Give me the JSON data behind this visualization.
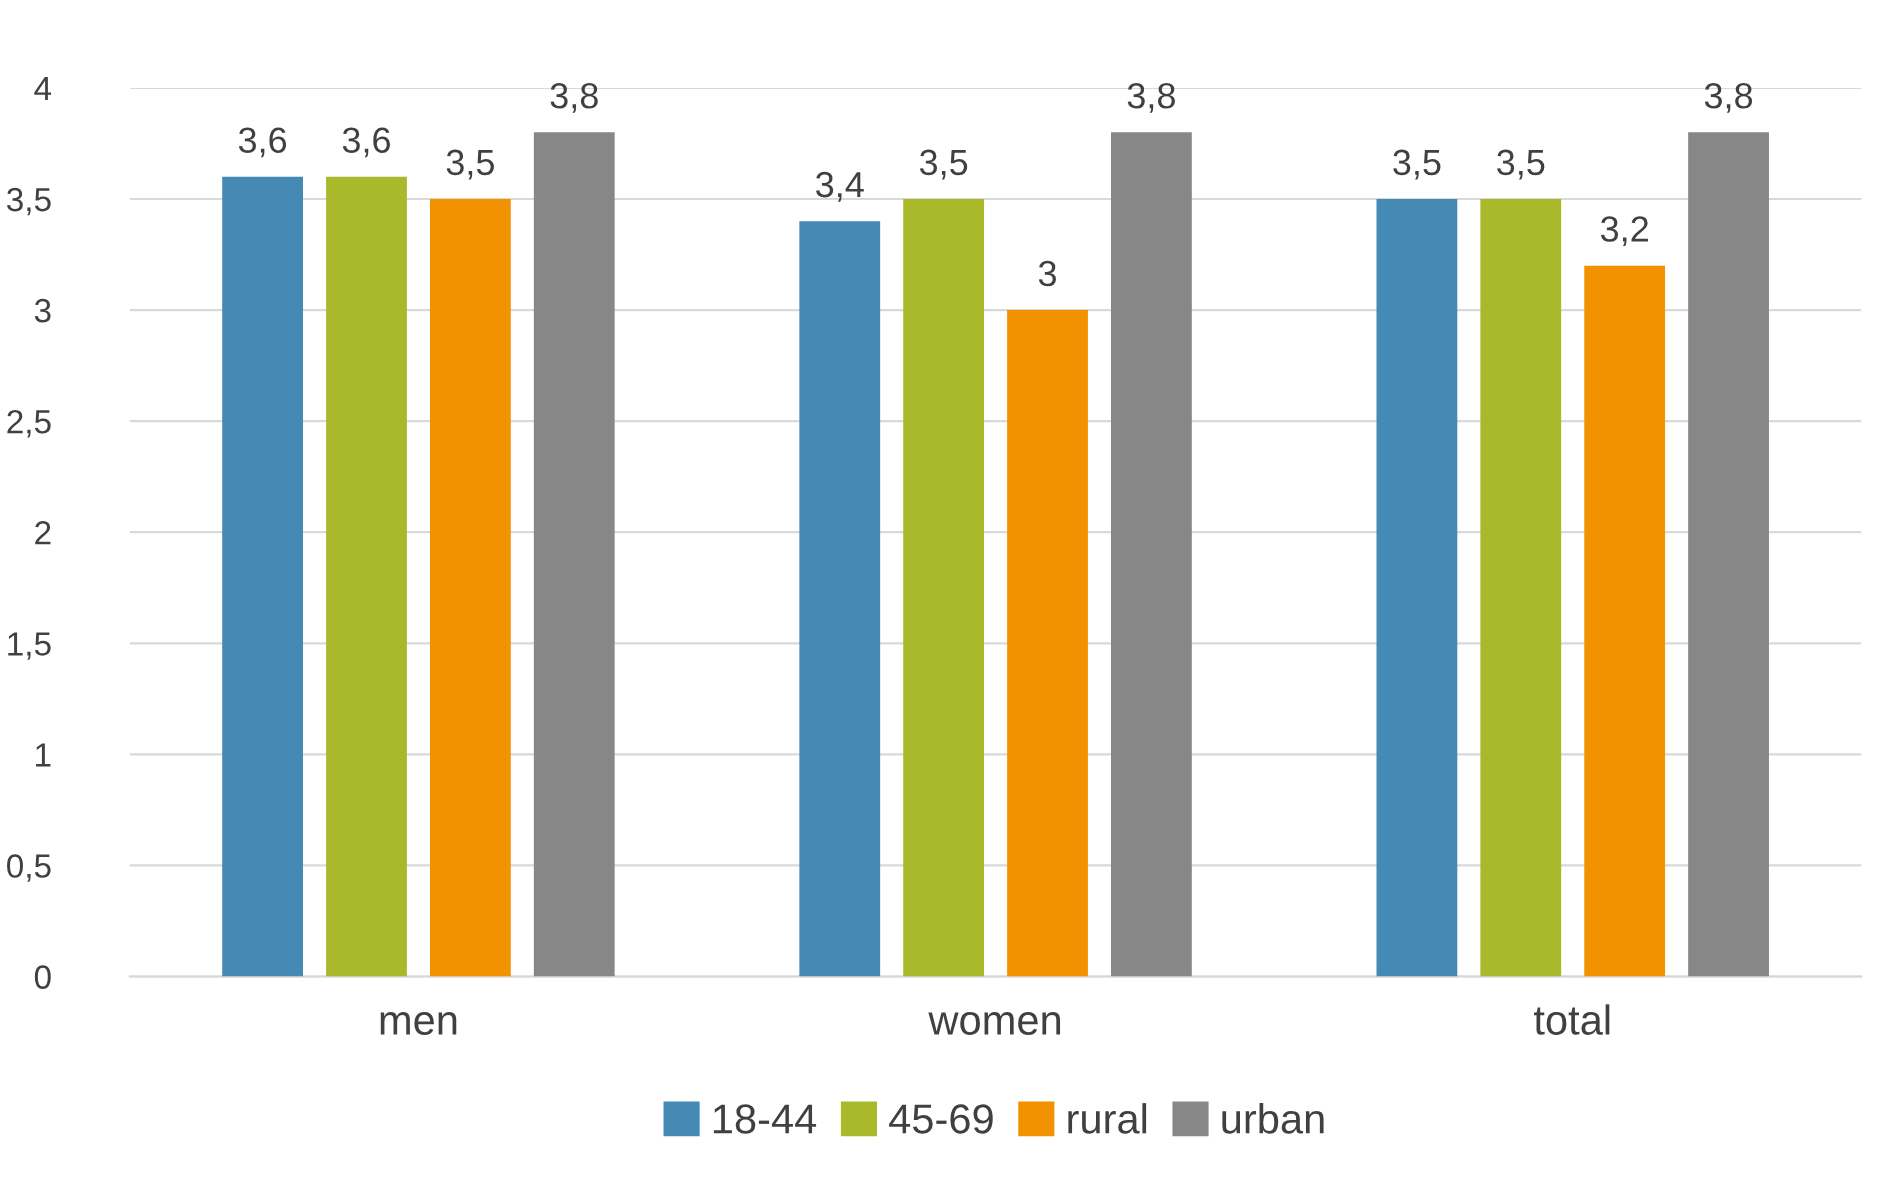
{
  "chart_data": {
    "type": "bar",
    "categories": [
      "men",
      "women",
      "total"
    ],
    "series": [
      {
        "name": "18-44",
        "color": "#448ab5",
        "values": [
          3.6,
          3.4,
          3.5
        ],
        "value_labels": [
          "3,6",
          "3,4",
          "3,5"
        ]
      },
      {
        "name": "45-69",
        "color": "#a9b92b",
        "values": [
          3.6,
          3.5,
          3.5
        ],
        "value_labels": [
          "3,6",
          "3,5",
          "3,5"
        ]
      },
      {
        "name": "rural",
        "color": "#f39200",
        "values": [
          3.5,
          3.0,
          3.2
        ],
        "value_labels": [
          "3,5",
          "3",
          "3,2"
        ]
      },
      {
        "name": "urban",
        "color": "#878787",
        "values": [
          3.8,
          3.8,
          3.8
        ],
        "value_labels": [
          "3,8",
          "3,8",
          "3,8"
        ]
      }
    ],
    "ylim": [
      0,
      4
    ],
    "yticks": [
      0,
      {
        "value": 0.5,
        "label": "0,5"
      },
      1,
      {
        "value": 1.5,
        "label": "1,5"
      },
      2,
      {
        "value": 2.5,
        "label": "2,5"
      },
      3,
      {
        "value": 3.5,
        "label": "3,5"
      },
      4
    ],
    "grid": "y",
    "legend": "bottom"
  }
}
